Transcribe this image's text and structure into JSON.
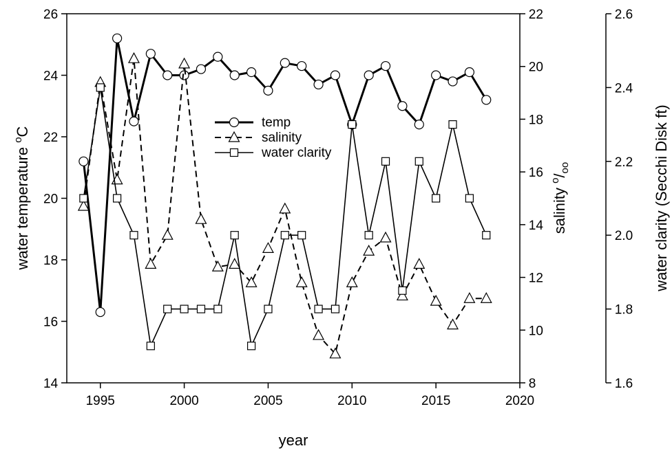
{
  "chart_data": {
    "type": "line",
    "xlabel": "year",
    "ylabel": [
      "water temperature ",
      "o",
      "C"
    ],
    "y2label": [
      "salinity ",
      "o",
      "/",
      "oo"
    ],
    "y3label": "water clarity (Secchi Disk ft)",
    "x": [
      1994,
      1995,
      1996,
      1997,
      1998,
      1999,
      2000,
      2001,
      2002,
      2003,
      2004,
      2005,
      2006,
      2007,
      2008,
      2009,
      2010,
      2011,
      2012,
      2013,
      2014,
      2015,
      2016,
      2017,
      2018
    ],
    "xlim": [
      1993,
      2020
    ],
    "xticks": [
      1995,
      2000,
      2005,
      2010,
      2015,
      2020
    ],
    "ylim": [
      14,
      26
    ],
    "yticks": [
      14,
      16,
      18,
      20,
      22,
      24,
      26
    ],
    "y2lim": [
      8,
      22
    ],
    "y2ticks": [
      8,
      10,
      12,
      14,
      16,
      18,
      20,
      22
    ],
    "y3lim": [
      1.6,
      2.6
    ],
    "y3ticks": [
      1.6,
      1.8,
      {
        "value": 2.0,
        "label": "2.0"
      },
      2.2,
      2.4,
      2.6
    ],
    "legend": "upper center",
    "series": [
      {
        "name": "temp",
        "color": "#000000",
        "axis": "y",
        "values": [
          21.2,
          16.3,
          25.2,
          22.5,
          24.7,
          24.0,
          24.0,
          24.2,
          24.6,
          24.0,
          24.1,
          23.5,
          24.4,
          24.3,
          23.7,
          24.0,
          22.4,
          24.0,
          24.3,
          23.0,
          22.4,
          24.0,
          23.8,
          24.1,
          23.2
        ]
      },
      {
        "name": "salinity",
        "color": "#000000",
        "axis": "y2",
        "values": [
          14.7,
          19.4,
          15.7,
          20.3,
          12.5,
          13.6,
          20.1,
          14.2,
          12.4,
          12.5,
          11.8,
          13.1,
          14.6,
          11.8,
          9.8,
          9.1,
          11.8,
          13.0,
          13.5,
          11.3,
          12.5,
          11.1,
          10.2,
          11.2,
          11.2
        ]
      },
      {
        "name": "water clarity",
        "color": "#000000",
        "axis": "y3",
        "values": [
          2.1,
          2.4,
          2.1,
          2.0,
          1.7,
          1.8,
          1.8,
          1.8,
          1.8,
          2.0,
          1.7,
          1.8,
          2.0,
          2.0,
          1.8,
          1.8,
          2.3,
          2.0,
          2.2,
          1.85,
          2.2,
          2.1,
          2.3,
          2.1,
          2.0
        ]
      }
    ]
  }
}
